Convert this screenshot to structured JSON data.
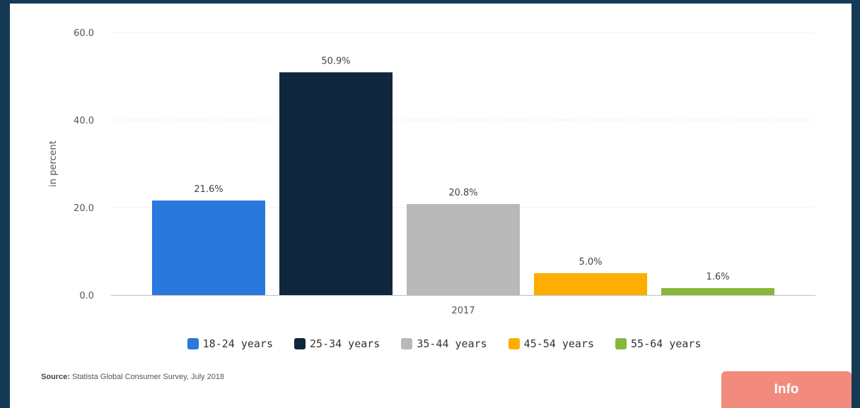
{
  "chart_data": {
    "type": "bar",
    "categories": [
      "2017"
    ],
    "series": [
      {
        "name": "18-24 years",
        "values": [
          21.6
        ],
        "color": "#2a77dd",
        "label": "21.6%"
      },
      {
        "name": "25-34 years",
        "values": [
          50.9
        ],
        "color": "#10263e",
        "label": "50.9%"
      },
      {
        "name": "35-44 years",
        "values": [
          20.8
        ],
        "color": "#b9b9b9",
        "label": "20.8%"
      },
      {
        "name": "45-54 years",
        "values": [
          5.0
        ],
        "color": "#fdae00",
        "label": "5.0%"
      },
      {
        "name": "55-64 years",
        "values": [
          1.6
        ],
        "color": "#86b83a",
        "label": "1.6%"
      }
    ],
    "ylabel": "in percent",
    "xlabel": "",
    "ylim": [
      0,
      60
    ],
    "yticks": [
      "0.0",
      "20.0",
      "40.0",
      "60.0"
    ],
    "grid": true,
    "legend_position": "bottom"
  },
  "source": {
    "label": "Source:",
    "text": "Statista Global Consumer Survey, July 2018"
  },
  "info_button": {
    "label": "Info"
  },
  "colors": {
    "background": "#143a56",
    "info_button": "#f28b7d"
  }
}
